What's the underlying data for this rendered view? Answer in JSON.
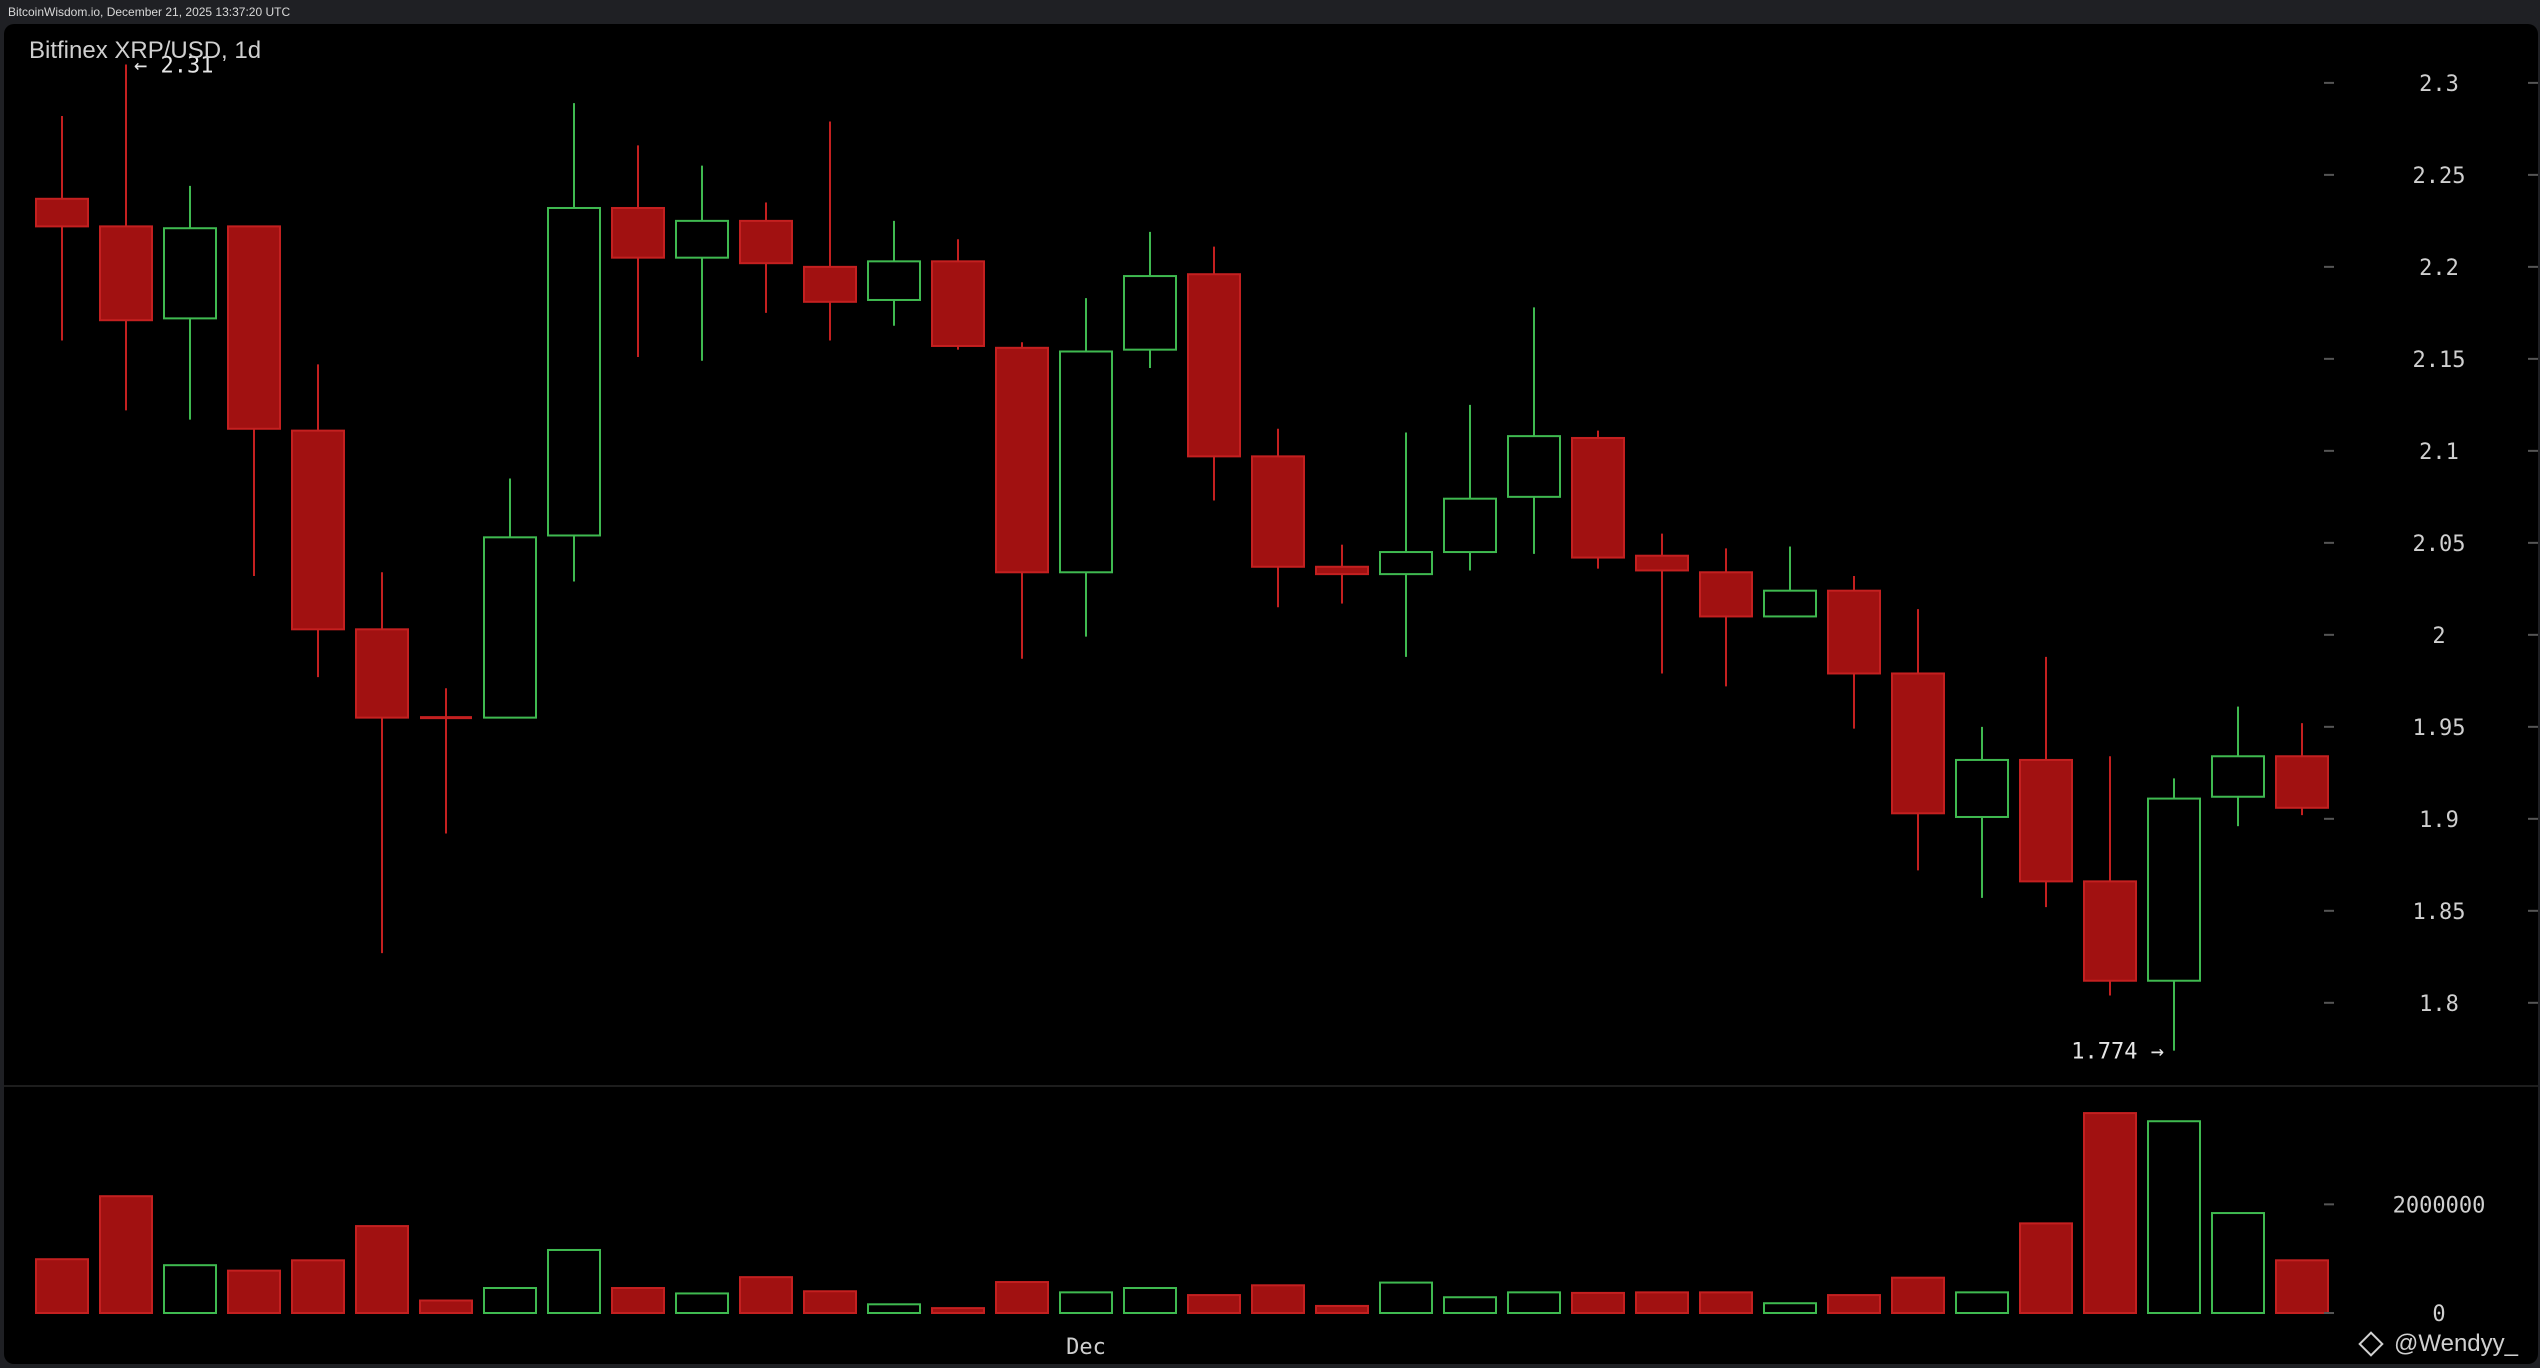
{
  "header": {
    "source_line": "BitcoinWisdom.io, December 21, 2025 13:37:20 UTC"
  },
  "watermark": {
    "label": "@Wendyy_",
    "icon": "binance-diamond-icon"
  },
  "colors": {
    "up": "#3fb950",
    "down": "#a11111",
    "down_stroke": "#c42020",
    "axis_text": "#cfcfcf",
    "background": "#000000"
  },
  "chart_data": [
    {
      "type": "candlestick",
      "title": "Bitfinex XRP/USD, 1d",
      "y_ticks": [
        "2.3",
        "2.25",
        "2.2",
        "2.15",
        "2.1",
        "2.05",
        "2",
        "1.95",
        "1.9",
        "1.85",
        "1.8"
      ],
      "y_tick_values": [
        2.3,
        2.25,
        2.2,
        2.15,
        2.1,
        2.05,
        2.0,
        1.95,
        1.9,
        1.85,
        1.8
      ],
      "ylim": [
        1.745,
        2.332
      ],
      "x_labels": [
        {
          "label": "Dec",
          "index": 16
        }
      ],
      "annotations": [
        {
          "text": "← 2.31",
          "value": 2.31,
          "index": 1,
          "side": "right"
        },
        {
          "text": "1.774 →",
          "value": 1.774,
          "index": 33,
          "side": "left"
        }
      ],
      "candles": [
        {
          "open": 2.237,
          "high": 2.282,
          "low": 2.16,
          "close": 2.222
        },
        {
          "open": 2.222,
          "high": 2.31,
          "low": 2.122,
          "close": 2.171
        },
        {
          "open": 2.172,
          "high": 2.244,
          "low": 2.117,
          "close": 2.221
        },
        {
          "open": 2.222,
          "high": 2.222,
          "low": 2.032,
          "close": 2.112
        },
        {
          "open": 2.111,
          "high": 2.147,
          "low": 1.977,
          "close": 2.003
        },
        {
          "open": 2.003,
          "high": 2.034,
          "low": 1.827,
          "close": 1.955
        },
        {
          "open": 1.955,
          "high": 1.971,
          "low": 1.892,
          "close": 1.955
        },
        {
          "open": 1.955,
          "high": 2.085,
          "low": 1.955,
          "close": 2.053
        },
        {
          "open": 2.054,
          "high": 2.289,
          "low": 2.029,
          "close": 2.232
        },
        {
          "open": 2.232,
          "high": 2.266,
          "low": 2.151,
          "close": 2.205
        },
        {
          "open": 2.205,
          "high": 2.255,
          "low": 2.149,
          "close": 2.225
        },
        {
          "open": 2.225,
          "high": 2.235,
          "low": 2.175,
          "close": 2.202
        },
        {
          "open": 2.2,
          "high": 2.279,
          "low": 2.16,
          "close": 2.181
        },
        {
          "open": 2.182,
          "high": 2.225,
          "low": 2.168,
          "close": 2.203
        },
        {
          "open": 2.203,
          "high": 2.215,
          "low": 2.155,
          "close": 2.157
        },
        {
          "open": 2.156,
          "high": 2.159,
          "low": 1.987,
          "close": 2.034
        },
        {
          "open": 2.034,
          "high": 2.183,
          "low": 1.999,
          "close": 2.154
        },
        {
          "open": 2.155,
          "high": 2.219,
          "low": 2.145,
          "close": 2.195
        },
        {
          "open": 2.196,
          "high": 2.211,
          "low": 2.073,
          "close": 2.097
        },
        {
          "open": 2.097,
          "high": 2.112,
          "low": 2.015,
          "close": 2.037
        },
        {
          "open": 2.037,
          "high": 2.049,
          "low": 2.017,
          "close": 2.033
        },
        {
          "open": 2.033,
          "high": 2.11,
          "low": 1.988,
          "close": 2.045
        },
        {
          "open": 2.045,
          "high": 2.125,
          "low": 2.035,
          "close": 2.074
        },
        {
          "open": 2.075,
          "high": 2.178,
          "low": 2.044,
          "close": 2.108
        },
        {
          "open": 2.107,
          "high": 2.111,
          "low": 2.036,
          "close": 2.042
        },
        {
          "open": 2.043,
          "high": 2.055,
          "low": 1.979,
          "close": 2.035
        },
        {
          "open": 2.034,
          "high": 2.047,
          "low": 1.972,
          "close": 2.01
        },
        {
          "open": 2.01,
          "high": 2.048,
          "low": 2.01,
          "close": 2.024
        },
        {
          "open": 2.024,
          "high": 2.032,
          "low": 1.949,
          "close": 1.979
        },
        {
          "open": 1.979,
          "high": 2.014,
          "low": 1.872,
          "close": 1.903
        },
        {
          "open": 1.901,
          "high": 1.95,
          "low": 1.857,
          "close": 1.932
        },
        {
          "open": 1.932,
          "high": 1.988,
          "low": 1.852,
          "close": 1.866
        },
        {
          "open": 1.866,
          "high": 1.934,
          "low": 1.804,
          "close": 1.812
        },
        {
          "open": 1.812,
          "high": 1.922,
          "low": 1.774,
          "close": 1.911
        },
        {
          "open": 1.912,
          "high": 1.961,
          "low": 1.896,
          "close": 1.934
        },
        {
          "open": 1.934,
          "high": 1.952,
          "low": 1.902,
          "close": 1.906
        }
      ]
    },
    {
      "type": "bar",
      "title": "",
      "y_ticks": [
        "2000000",
        "0"
      ],
      "y_tick_values": [
        2000000,
        0
      ],
      "ylim": [
        0,
        3700000
      ],
      "volumes": [
        990000,
        2150000,
        880000,
        780000,
        970000,
        1600000,
        230000,
        460000,
        1160000,
        460000,
        360000,
        660000,
        400000,
        160000,
        90000,
        570000,
        380000,
        460000,
        330000,
        510000,
        130000,
        560000,
        290000,
        380000,
        370000,
        380000,
        380000,
        180000,
        330000,
        650000,
        380000,
        1650000,
        3680000,
        3530000,
        1840000,
        970000
      ]
    }
  ]
}
